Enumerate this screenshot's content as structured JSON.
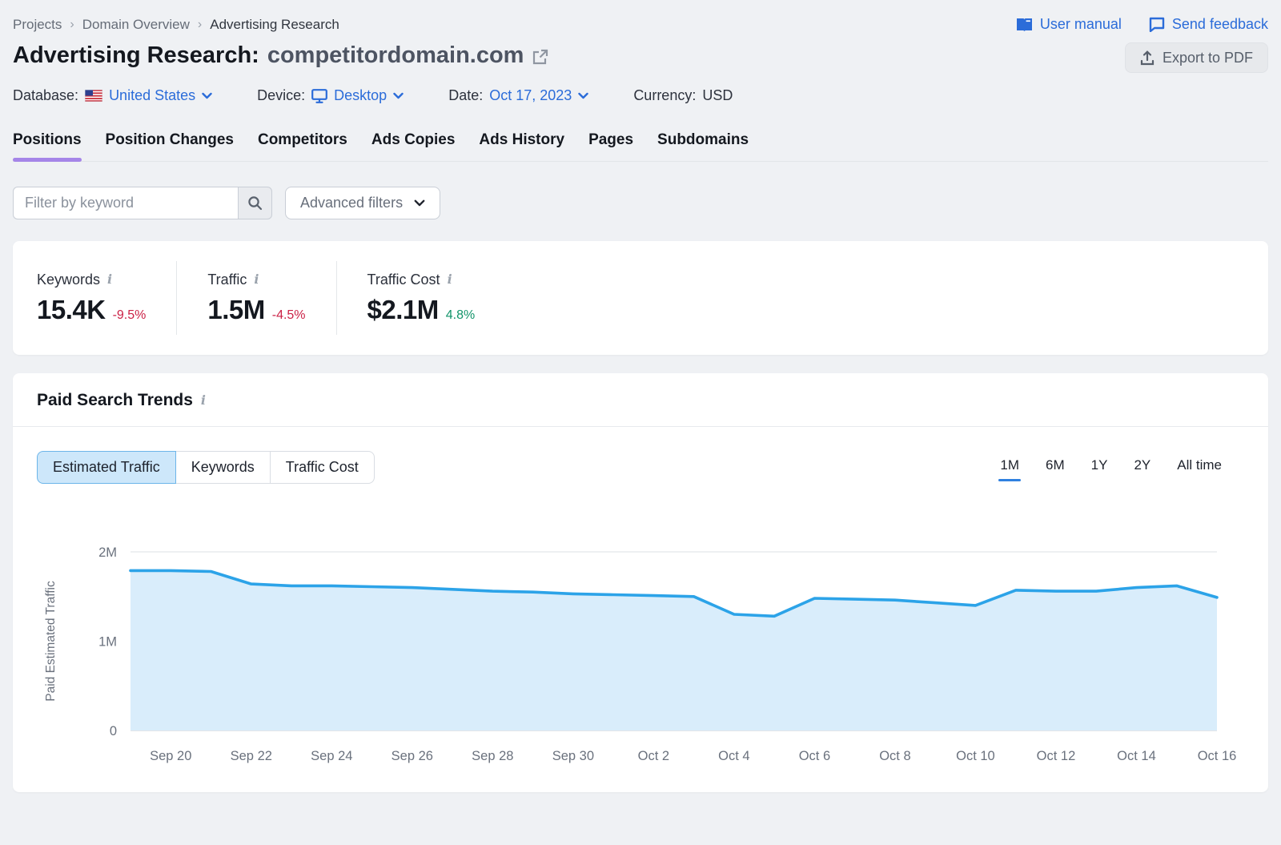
{
  "header": {
    "breadcrumb": [
      "Projects",
      "Domain Overview",
      "Advertising Research"
    ],
    "links": {
      "user_manual": "User manual",
      "send_feedback": "Send feedback"
    },
    "title_prefix": "Advertising Research:",
    "title_domain": "competitordomain.com",
    "export_button": "Export to PDF",
    "filters": {
      "database": {
        "label": "Database:",
        "value": "United States"
      },
      "device": {
        "label": "Device:",
        "value": "Desktop"
      },
      "date": {
        "label": "Date:",
        "value": "Oct 17, 2023"
      },
      "currency": {
        "label": "Currency:",
        "value": "USD"
      }
    }
  },
  "tabs": {
    "items": [
      "Positions",
      "Position Changes",
      "Competitors",
      "Ads Copies",
      "Ads History",
      "Pages",
      "Subdomains"
    ],
    "active": "Positions"
  },
  "filter_bar": {
    "keyword_placeholder": "Filter by keyword",
    "advanced_filters": "Advanced filters"
  },
  "stats": [
    {
      "label": "Keywords",
      "value": "15.4K",
      "change": "-9.5%",
      "direction": "down"
    },
    {
      "label": "Traffic",
      "value": "1.5M",
      "change": "-4.5%",
      "direction": "down"
    },
    {
      "label": "Traffic Cost",
      "value": "$2.1M",
      "change": "4.8%",
      "direction": "up"
    }
  ],
  "trends": {
    "title": "Paid Search Trends",
    "metric_toggle": [
      "Estimated Traffic",
      "Keywords",
      "Traffic Cost"
    ],
    "metric_active": "Estimated Traffic",
    "ranges": [
      "1M",
      "6M",
      "1Y",
      "2Y",
      "All time"
    ],
    "range_active": "1M"
  },
  "chart_data": {
    "type": "area",
    "title": "Paid Search Trends",
    "ylabel": "Paid Estimated Traffic",
    "ylim_millions": [
      0,
      2
    ],
    "yticks": [
      {
        "label": "2M",
        "value": 2
      },
      {
        "label": "1M",
        "value": 1
      },
      {
        "label": "0",
        "value": 0
      }
    ],
    "grid": "horizontal",
    "legend": "none",
    "x": [
      "Sep 19",
      "Sep 20",
      "Sep 21",
      "Sep 22",
      "Sep 23",
      "Sep 24",
      "Sep 25",
      "Sep 26",
      "Sep 27",
      "Sep 28",
      "Sep 29",
      "Sep 30",
      "Oct 1",
      "Oct 2",
      "Oct 3",
      "Oct 4",
      "Oct 5",
      "Oct 6",
      "Oct 7",
      "Oct 8",
      "Oct 9",
      "Oct 10",
      "Oct 11",
      "Oct 12",
      "Oct 13",
      "Oct 14",
      "Oct 15",
      "Oct 16"
    ],
    "values_millions": [
      1.79,
      1.79,
      1.78,
      1.64,
      1.62,
      1.62,
      1.61,
      1.6,
      1.58,
      1.56,
      1.55,
      1.53,
      1.52,
      1.51,
      1.5,
      1.3,
      1.28,
      1.48,
      1.47,
      1.46,
      1.43,
      1.4,
      1.57,
      1.56,
      1.56,
      1.6,
      1.62,
      1.49
    ],
    "xtick_labels": [
      "Sep 20",
      "Sep 22",
      "Sep 24",
      "Sep 26",
      "Sep 28",
      "Sep 30",
      "Oct 2",
      "Oct 4",
      "Oct 6",
      "Oct 8",
      "Oct 10",
      "Oct 12",
      "Oct 14",
      "Oct 16"
    ],
    "line_color": "#2ca3e8",
    "fill_color": "#d9edfb"
  },
  "colors": {
    "link_blue": "#2b6cd9",
    "tab_underline_purple": "#a585e8",
    "range_underline_blue": "#2f80e0",
    "negative_red": "#cb2146",
    "positive_green": "#12946a",
    "page_background": "#eff1f4"
  }
}
